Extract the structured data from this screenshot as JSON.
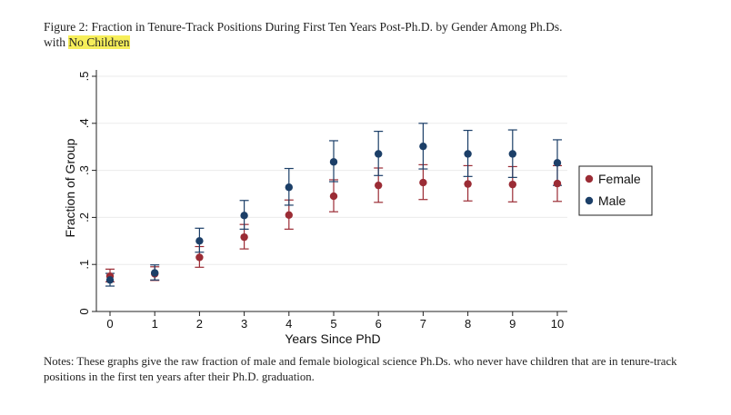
{
  "caption": {
    "line1": "Figure 2: Fraction in Tenure-Track Positions During First Ten Years Post-Ph.D. by Gender Among Ph.Ds.",
    "line2_prefix": "with ",
    "line2_highlight": "No Children"
  },
  "notes": "Notes: These graphs give the raw fraction of male and female biological science Ph.Ds. who never have children that are in tenure-track positions in the first ten years after their Ph.D. graduation.",
  "colors": {
    "female": "#9b2c35",
    "male": "#1c3f68"
  },
  "chart_data": {
    "type": "scatter",
    "xlabel": "Years Since PhD",
    "ylabel": "Fraction of Group",
    "x_ticks": [
      "0",
      "1",
      "2",
      "3",
      "4",
      "5",
      "6",
      "7",
      "8",
      "9",
      "10"
    ],
    "y_ticks": [
      "0",
      ".1",
      ".2",
      ".3",
      ".4",
      ".5"
    ],
    "xlim": [
      0,
      10
    ],
    "ylim": [
      0,
      0.5
    ],
    "grid": true,
    "legend_position": "right",
    "series": [
      {
        "name": "Female",
        "x": [
          0,
          1,
          2,
          3,
          4,
          5,
          6,
          7,
          8,
          9,
          10
        ],
        "y": [
          0.075,
          0.08,
          0.115,
          0.158,
          0.205,
          0.245,
          0.268,
          0.274,
          0.271,
          0.27,
          0.272
        ],
        "ci_low": [
          0.063,
          0.066,
          0.094,
          0.133,
          0.175,
          0.212,
          0.232,
          0.238,
          0.235,
          0.233,
          0.234
        ],
        "ci_high": [
          0.09,
          0.095,
          0.138,
          0.185,
          0.237,
          0.28,
          0.305,
          0.312,
          0.31,
          0.308,
          0.31
        ]
      },
      {
        "name": "Male",
        "x": [
          0,
          1,
          2,
          3,
          4,
          5,
          6,
          7,
          8,
          9,
          10
        ],
        "y": [
          0.067,
          0.082,
          0.15,
          0.204,
          0.264,
          0.318,
          0.335,
          0.351,
          0.335,
          0.335,
          0.316
        ],
        "ci_low": [
          0.054,
          0.067,
          0.126,
          0.175,
          0.226,
          0.276,
          0.289,
          0.303,
          0.287,
          0.285,
          0.268
        ],
        "ci_high": [
          0.081,
          0.099,
          0.177,
          0.236,
          0.304,
          0.363,
          0.383,
          0.4,
          0.385,
          0.386,
          0.365
        ]
      }
    ]
  }
}
